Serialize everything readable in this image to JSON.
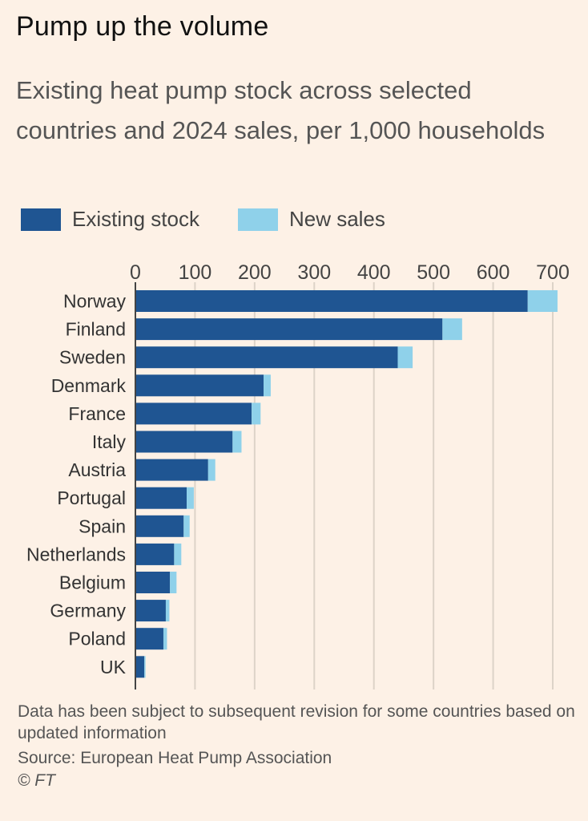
{
  "chart_data": {
    "type": "bar",
    "orientation": "horizontal",
    "stacked": true,
    "title": "Pump up the volume",
    "subtitle": "Existing heat pump stock across selected countries and 2024 sales, per 1,000 households",
    "categories": [
      "Norway",
      "Finland",
      "Sweden",
      "Denmark",
      "France",
      "Italy",
      "Austria",
      "Portugal",
      "Spain",
      "Netherlands",
      "Belgium",
      "Germany",
      "Poland",
      "UK"
    ],
    "series": [
      {
        "name": "Existing stock",
        "color": "#1f5592",
        "values": [
          658,
          515,
          440,
          215,
          195,
          163,
          122,
          86,
          81,
          65,
          58,
          51,
          47,
          15
        ]
      },
      {
        "name": "New sales",
        "color": "#8fd1ea",
        "values": [
          50,
          33,
          25,
          12,
          15,
          15,
          12,
          12,
          10,
          12,
          11,
          6,
          6,
          2
        ]
      }
    ],
    "xlim": [
      0,
      700
    ],
    "xticks": [
      "0",
      "100",
      "200",
      "300",
      "400",
      "500",
      "600",
      "700"
    ],
    "legend_position": "top-left",
    "grid": true
  },
  "footnote": "Data has been subject to subsequent revision for some countries based on updated information",
  "source": "Source: European Heat Pump Association",
  "credit": "© FT"
}
